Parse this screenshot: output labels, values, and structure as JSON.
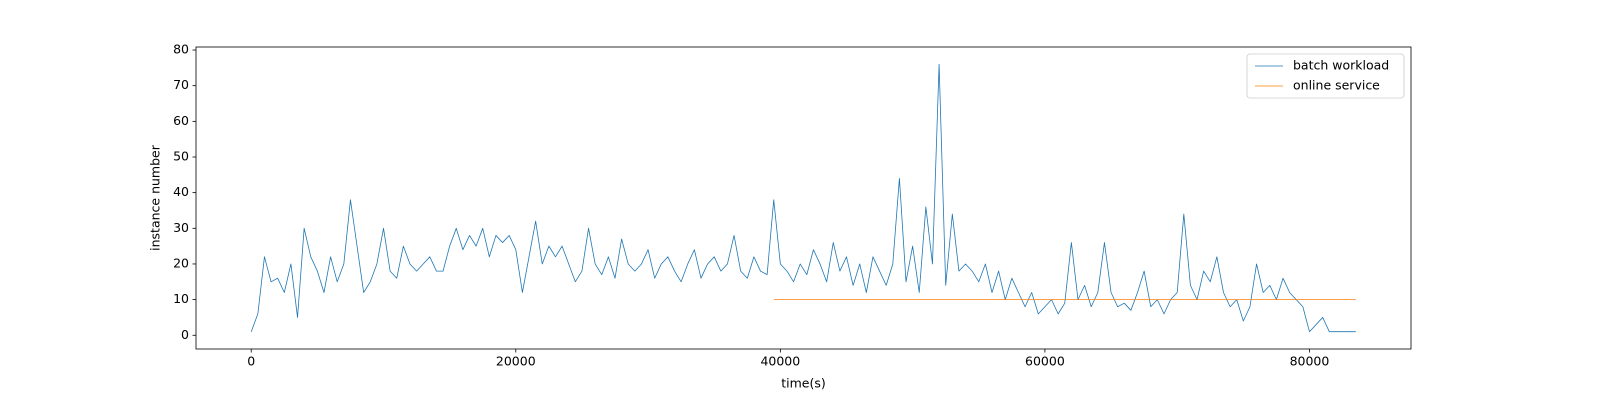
{
  "chart_data": {
    "type": "line",
    "xlabel": "time(s)",
    "ylabel": "instance number",
    "x": [
      0,
      500,
      1000,
      1500,
      2000,
      2500,
      3000,
      3500,
      4000,
      4500,
      5000,
      5500,
      6000,
      6500,
      7000,
      7500,
      8000,
      8500,
      9000,
      9500,
      10000,
      10500,
      11000,
      11500,
      12000,
      12500,
      13000,
      13500,
      14000,
      14500,
      15000,
      15500,
      16000,
      16500,
      17000,
      17500,
      18000,
      18500,
      19000,
      19500,
      20000,
      20500,
      21000,
      21500,
      22000,
      22500,
      23000,
      23500,
      24000,
      24500,
      25000,
      25500,
      26000,
      26500,
      27000,
      27500,
      28000,
      28500,
      29000,
      29500,
      30000,
      30500,
      31000,
      31500,
      32000,
      32500,
      33000,
      33500,
      34000,
      34500,
      35000,
      35500,
      36000,
      36500,
      37000,
      37500,
      38000,
      38500,
      39000,
      39500,
      40000,
      40500,
      41000,
      41500,
      42000,
      42500,
      43000,
      43500,
      44000,
      44500,
      45000,
      45500,
      46000,
      46500,
      47000,
      47500,
      48000,
      48500,
      49000,
      49500,
      50000,
      50500,
      51000,
      51500,
      52000,
      52500,
      53000,
      53500,
      54000,
      54500,
      55000,
      55500,
      56000,
      56500,
      57000,
      57500,
      58000,
      58500,
      59000,
      59500,
      60000,
      60500,
      61000,
      61500,
      62000,
      62500,
      63000,
      63500,
      64000,
      64500,
      65000,
      65500,
      66000,
      66500,
      67000,
      67500,
      68000,
      68500,
      69000,
      69500,
      70000,
      70500,
      71000,
      71500,
      72000,
      72500,
      73000,
      73500,
      74000,
      74500,
      75000,
      75500,
      76000,
      76500,
      77000,
      77500,
      78000,
      78500,
      79000,
      79500,
      80000,
      80500,
      81000,
      81500,
      82000,
      82500,
      83000,
      83500
    ],
    "series": [
      {
        "name": "batch workload",
        "color": "#1f77b4",
        "values": [
          1,
          6,
          22,
          15,
          16,
          12,
          20,
          5,
          30,
          22,
          18,
          12,
          22,
          15,
          20,
          38,
          25,
          12,
          15,
          20,
          30,
          18,
          16,
          25,
          20,
          18,
          20,
          22,
          18,
          18,
          25,
          30,
          24,
          28,
          25,
          30,
          22,
          28,
          26,
          28,
          24,
          12,
          22,
          32,
          20,
          25,
          22,
          25,
          20,
          15,
          18,
          30,
          20,
          17,
          22,
          16,
          27,
          20,
          18,
          20,
          24,
          16,
          20,
          22,
          18,
          15,
          20,
          24,
          16,
          20,
          22,
          18,
          20,
          28,
          18,
          16,
          22,
          18,
          17,
          38,
          20,
          18,
          15,
          20,
          17,
          24,
          20,
          15,
          26,
          18,
          22,
          14,
          20,
          12,
          22,
          18,
          14,
          20,
          44,
          15,
          25,
          12,
          36,
          20,
          76,
          14,
          34,
          18,
          20,
          18,
          15,
          20,
          12,
          18,
          10,
          16,
          12,
          8,
          12,
          6,
          8,
          10,
          6,
          9,
          26,
          10,
          14,
          8,
          12,
          26,
          12,
          8,
          9,
          7,
          12,
          18,
          8,
          10,
          6,
          10,
          12,
          34,
          14,
          10,
          18,
          15,
          22,
          12,
          8,
          10,
          4,
          8,
          20,
          12,
          14,
          10,
          16,
          12,
          10,
          8,
          1,
          3,
          5,
          1,
          1,
          1,
          1,
          1
        ]
      },
      {
        "name": "online service",
        "color": "#ff7f0e",
        "values": [
          null,
          null,
          null,
          null,
          null,
          null,
          null,
          null,
          null,
          null,
          null,
          null,
          null,
          null,
          null,
          null,
          null,
          null,
          null,
          null,
          null,
          null,
          null,
          null,
          null,
          null,
          null,
          null,
          null,
          null,
          null,
          null,
          null,
          null,
          null,
          null,
          null,
          null,
          null,
          null,
          null,
          null,
          null,
          null,
          null,
          null,
          null,
          null,
          null,
          null,
          null,
          null,
          null,
          null,
          null,
          null,
          null,
          null,
          null,
          null,
          null,
          null,
          null,
          null,
          null,
          null,
          null,
          null,
          null,
          null,
          null,
          null,
          null,
          null,
          null,
          null,
          null,
          null,
          null,
          10,
          10,
          10,
          10,
          10,
          10,
          10,
          10,
          10,
          10,
          10,
          10,
          10,
          10,
          10,
          10,
          10,
          10,
          10,
          10,
          10,
          10,
          10,
          10,
          10,
          10,
          10,
          10,
          10,
          10,
          10,
          10,
          10,
          10,
          10,
          10,
          10,
          10,
          10,
          10,
          10,
          10,
          10,
          10,
          10,
          10,
          10,
          10,
          10,
          10,
          10,
          10,
          10,
          10,
          10,
          10,
          10,
          10,
          10,
          10,
          10,
          10,
          10,
          10,
          10,
          10,
          10,
          10,
          10,
          10,
          10,
          10,
          10,
          10,
          10,
          10,
          10,
          10,
          10,
          10,
          10,
          10,
          10,
          10,
          10,
          10,
          10,
          10,
          10
        ]
      }
    ],
    "xlim": [
      -4175,
      87675
    ],
    "ylim": [
      -3.85,
      80.85
    ],
    "xticks": [
      0,
      20000,
      40000,
      60000,
      80000
    ],
    "yticks": [
      0,
      10,
      20,
      30,
      40,
      50,
      60,
      70,
      80
    ],
    "legend": "upper right"
  }
}
